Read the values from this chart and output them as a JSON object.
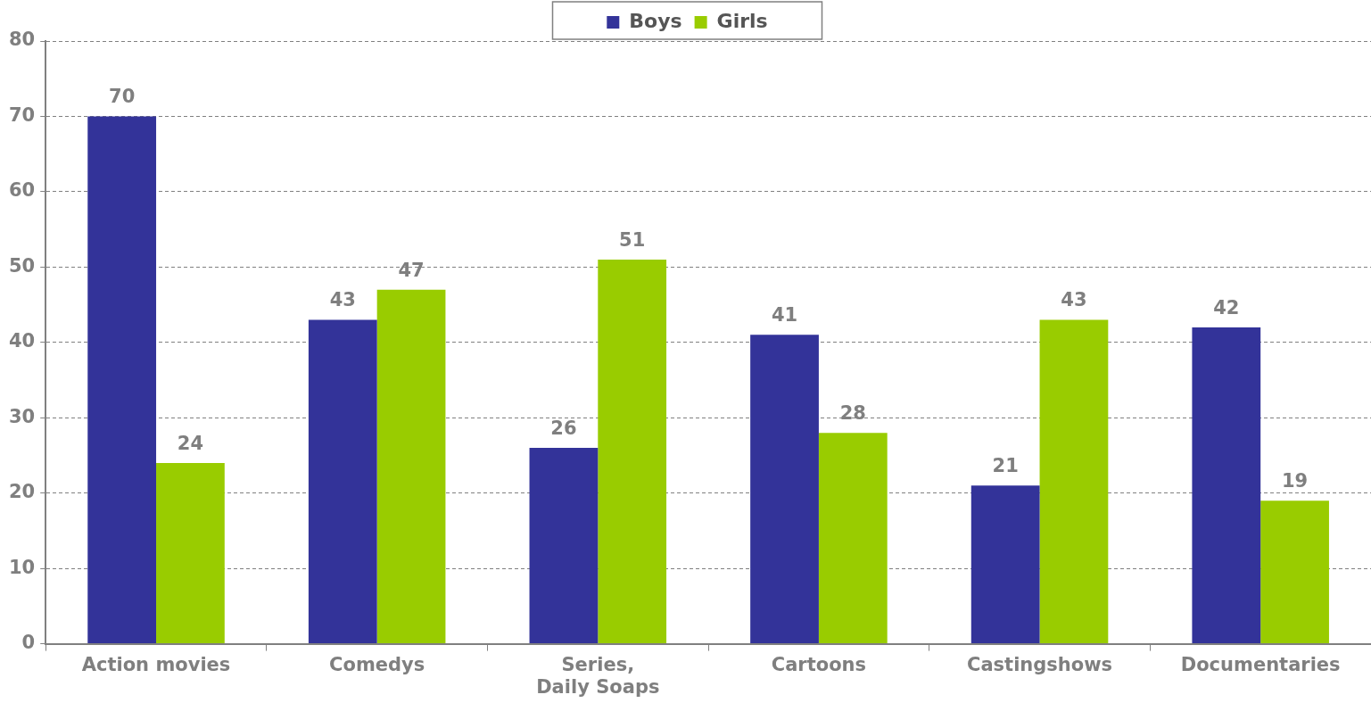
{
  "chart_data": {
    "type": "bar",
    "categories": [
      "Action movies",
      "Comedys",
      "Series, Daily Soaps",
      "Cartoons",
      "Castingshows",
      "Documentaries"
    ],
    "series": [
      {
        "name": "Boys",
        "color": "#333399",
        "values": [
          70,
          43,
          26,
          41,
          21,
          42
        ]
      },
      {
        "name": "Girls",
        "color": "#99cc00",
        "values": [
          24,
          47,
          51,
          28,
          43,
          19
        ]
      }
    ],
    "ylim": [
      0,
      80
    ],
    "yticks": [
      0,
      10,
      20,
      30,
      40,
      50,
      60,
      70,
      80
    ],
    "grid": "y",
    "legend": "top",
    "data_labels": true
  }
}
